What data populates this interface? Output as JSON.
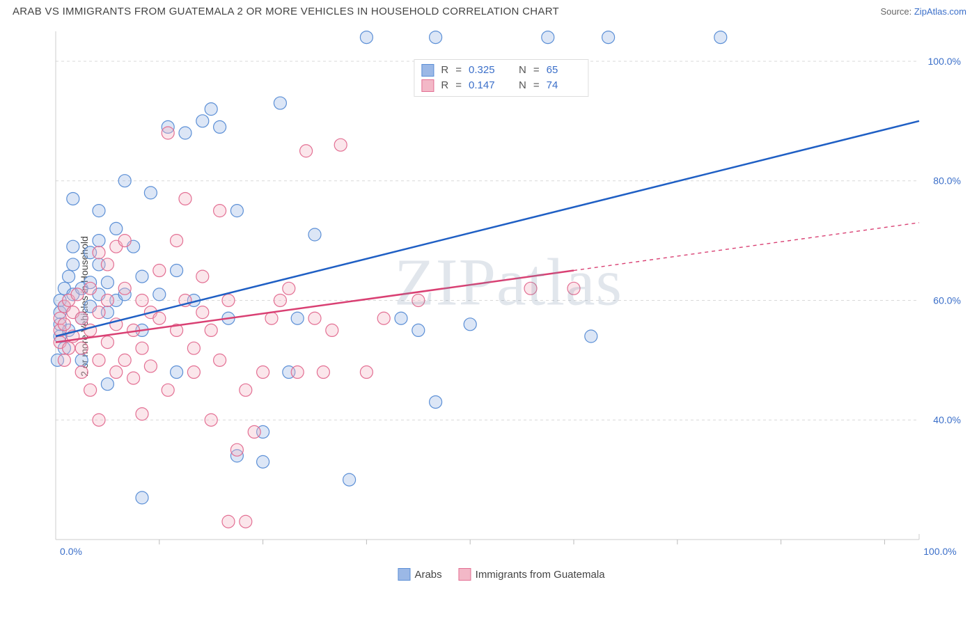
{
  "chart": {
    "type": "scatter",
    "title": "ARAB VS IMMIGRANTS FROM GUATEMALA 2 OR MORE VEHICLES IN HOUSEHOLD CORRELATION CHART",
    "source_label": "Source: ",
    "source_name": "ZipAtlas.com",
    "watermark": "ZIPatlas",
    "y_axis_label": "2 or more Vehicles in Household",
    "xlim": [
      0,
      100
    ],
    "ylim": [
      20,
      105
    ],
    "y_ticks": [
      40,
      60,
      80,
      100
    ],
    "y_tick_labels": [
      "40.0%",
      "60.0%",
      "80.0%",
      "100.0%"
    ],
    "x_end_labels": [
      "0.0%",
      "100.0%"
    ],
    "x_minor_ticks": [
      12,
      24,
      36,
      48,
      60,
      72,
      84,
      96
    ],
    "background_color": "#ffffff",
    "grid_color": "#d8d8d8",
    "axis_color": "#cccccc",
    "tick_color": "#bbbbbb",
    "value_text_color": "#3b6fc9",
    "label_text_color": "#444444",
    "title_fontsize": 15,
    "axis_label_fontsize": 14,
    "tick_fontsize": 14,
    "marker_radius": 9,
    "marker_stroke_width": 1.2,
    "marker_fill_opacity": 0.35,
    "trend_line_width": 2.5,
    "series": [
      {
        "name": "Arabs",
        "color_fill": "#9bb8e6",
        "color_stroke": "#5b8fd6",
        "line_color": "#1f5fc4",
        "R": "0.325",
        "N": "65",
        "trend": {
          "x1": 0,
          "y1": 54,
          "x2": 100,
          "y2": 90,
          "dashed_from_x": null
        },
        "points": [
          [
            0.5,
            60
          ],
          [
            0.5,
            58
          ],
          [
            0.5,
            56
          ],
          [
            0.5,
            54
          ],
          [
            0.2,
            50
          ],
          [
            1,
            62
          ],
          [
            1,
            59
          ],
          [
            1,
            52
          ],
          [
            1.5,
            64
          ],
          [
            1.5,
            55
          ],
          [
            2,
            66
          ],
          [
            2,
            77
          ],
          [
            2,
            69
          ],
          [
            2,
            61
          ],
          [
            3,
            62
          ],
          [
            3,
            57
          ],
          [
            3,
            50
          ],
          [
            4,
            63
          ],
          [
            4,
            68
          ],
          [
            4,
            59
          ],
          [
            5,
            75
          ],
          [
            5,
            70
          ],
          [
            5,
            66
          ],
          [
            5,
            61
          ],
          [
            6,
            63
          ],
          [
            6,
            58
          ],
          [
            7,
            72
          ],
          [
            7,
            60
          ],
          [
            8,
            61
          ],
          [
            8,
            80
          ],
          [
            9,
            69
          ],
          [
            10,
            64
          ],
          [
            10,
            55
          ],
          [
            11,
            78
          ],
          [
            12,
            61
          ],
          [
            13,
            89
          ],
          [
            14,
            65
          ],
          [
            15,
            88
          ],
          [
            16,
            60
          ],
          [
            17,
            90
          ],
          [
            18,
            92
          ],
          [
            19,
            89
          ],
          [
            20,
            57
          ],
          [
            21,
            75
          ],
          [
            21,
            34
          ],
          [
            24,
            38
          ],
          [
            24,
            33
          ],
          [
            26,
            93
          ],
          [
            27,
            48
          ],
          [
            28,
            57
          ],
          [
            30,
            71
          ],
          [
            34,
            30
          ],
          [
            36,
            104
          ],
          [
            40,
            57
          ],
          [
            42,
            55
          ],
          [
            44,
            104
          ],
          [
            44,
            43
          ],
          [
            48,
            56
          ],
          [
            57,
            104
          ],
          [
            62,
            54
          ],
          [
            64,
            104
          ],
          [
            77,
            104
          ],
          [
            10,
            27
          ],
          [
            14,
            48
          ],
          [
            6,
            46
          ]
        ]
      },
      {
        "name": "Immigrants from Guatemala",
        "color_fill": "#f3b8c7",
        "color_stroke": "#e36f93",
        "line_color": "#d94073",
        "R": "0.147",
        "N": "74",
        "trend": {
          "x1": 0,
          "y1": 53,
          "x2": 100,
          "y2": 73,
          "dashed_from_x": 60
        },
        "points": [
          [
            0.5,
            57
          ],
          [
            0.5,
            55
          ],
          [
            0.5,
            53
          ],
          [
            1,
            59
          ],
          [
            1,
            56
          ],
          [
            1,
            50
          ],
          [
            1.5,
            60
          ],
          [
            1.5,
            52
          ],
          [
            2,
            58
          ],
          [
            2,
            54
          ],
          [
            2.5,
            61
          ],
          [
            3,
            57
          ],
          [
            3,
            52
          ],
          [
            3,
            48
          ],
          [
            4,
            55
          ],
          [
            4,
            62
          ],
          [
            4,
            45
          ],
          [
            5,
            68
          ],
          [
            5,
            58
          ],
          [
            5,
            50
          ],
          [
            5,
            40
          ],
          [
            6,
            60
          ],
          [
            6,
            53
          ],
          [
            6,
            66
          ],
          [
            7,
            69
          ],
          [
            7,
            56
          ],
          [
            7,
            48
          ],
          [
            8,
            62
          ],
          [
            8,
            50
          ],
          [
            8,
            70
          ],
          [
            9,
            55
          ],
          [
            9,
            47
          ],
          [
            10,
            60
          ],
          [
            10,
            52
          ],
          [
            10,
            41
          ],
          [
            11,
            58
          ],
          [
            11,
            49
          ],
          [
            12,
            57
          ],
          [
            12,
            65
          ],
          [
            13,
            88
          ],
          [
            13,
            45
          ],
          [
            14,
            70
          ],
          [
            14,
            55
          ],
          [
            15,
            60
          ],
          [
            15,
            77
          ],
          [
            16,
            52
          ],
          [
            16,
            48
          ],
          [
            17,
            58
          ],
          [
            17,
            64
          ],
          [
            18,
            40
          ],
          [
            18,
            55
          ],
          [
            19,
            75
          ],
          [
            19,
            50
          ],
          [
            20,
            60
          ],
          [
            20,
            23
          ],
          [
            21,
            35
          ],
          [
            22,
            45
          ],
          [
            22,
            23
          ],
          [
            23,
            38
          ],
          [
            24,
            48
          ],
          [
            25,
            57
          ],
          [
            26,
            60
          ],
          [
            27,
            62
          ],
          [
            28,
            48
          ],
          [
            29,
            85
          ],
          [
            30,
            57
          ],
          [
            31,
            48
          ],
          [
            32,
            55
          ],
          [
            33,
            86
          ],
          [
            36,
            48
          ],
          [
            38,
            57
          ],
          [
            42,
            60
          ],
          [
            55,
            62
          ],
          [
            60,
            62
          ]
        ]
      }
    ],
    "stat_legend_labels": {
      "R": "R",
      "N": "N",
      "eq": "="
    },
    "bottom_legend": [
      "Arabs",
      "Immigrants from Guatemala"
    ]
  }
}
